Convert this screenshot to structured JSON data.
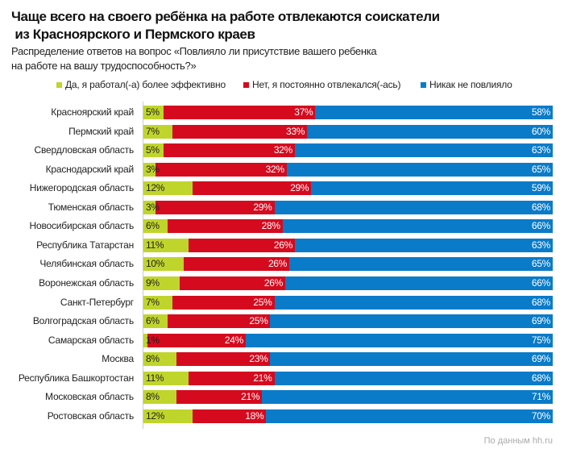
{
  "chart_data": {
    "type": "bar",
    "stacked": true,
    "orientation": "horizontal",
    "title": "Чаще всего на своего ребёнка на работе отвлекаются соискатели\n из Красноярского и Пермского краев",
    "subtitle_line1": "Распределение ответов на вопрос «Повлияло ли присутствие вашего ребенка",
    "subtitle_line2": "на работе на вашу трудоспособность?»",
    "legend_position": "top",
    "colors": [
      "#c0d52c",
      "#d50a1e",
      "#0a7bc9"
    ],
    "categories": [
      "Красноярский край",
      "Пермский край",
      "Свердловская область",
      "Краснодарский край",
      "Нижегородская область",
      "Тюменская область",
      "Новосибирская область",
      "Республика Татарстан",
      "Челябинская область",
      "Воронежская область",
      "Санкт-Петербург",
      "Волгоградская область",
      "Самарская область",
      "Москва",
      "Республика Башкортостан",
      "Московская область",
      "Ростовская область"
    ],
    "series": [
      {
        "name": "Да, я работал(-а) более эффективно",
        "values": [
          5,
          7,
          5,
          3,
          12,
          3,
          6,
          11,
          10,
          9,
          7,
          6,
          1,
          8,
          11,
          8,
          12
        ]
      },
      {
        "name": "Нет, я постоянно отвлекался(-ась)",
        "values": [
          37,
          33,
          32,
          32,
          29,
          29,
          28,
          26,
          26,
          26,
          25,
          25,
          24,
          23,
          21,
          21,
          18
        ]
      },
      {
        "name": "Никак не повлияло",
        "values": [
          58,
          60,
          63,
          65,
          59,
          68,
          66,
          63,
          65,
          66,
          68,
          69,
          75,
          69,
          68,
          71,
          70
        ]
      }
    ],
    "unit": "%",
    "source": "По данным hh.ru"
  }
}
